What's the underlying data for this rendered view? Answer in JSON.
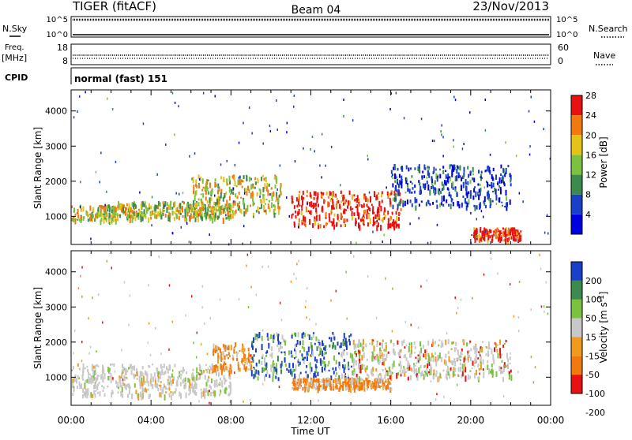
{
  "header": {
    "left": "TIGER (fitACF)",
    "center": "Beam 04",
    "right": "23/Nov/2013"
  },
  "strips": {
    "nsky_label": "N.Sky",
    "nsky_ticks": [
      "10^5",
      "10^0"
    ],
    "nsearch_ticks": [
      "10^5",
      "10^0"
    ],
    "nsearch_label": "N.Search",
    "freq_label": "Freq.",
    "freq_unit": "[MHz]",
    "freq_ticks": [
      "18",
      "8"
    ],
    "nave_ticks": [
      "60",
      "0"
    ],
    "nave_label": "Nave",
    "cpid_label": "CPID",
    "cpid_text": "normal (fast) 151"
  },
  "colors": {
    "power": [
      "#0000e0",
      "#1a3fc8",
      "#3b8a4e",
      "#7cc241",
      "#e3c21a",
      "#f07a10",
      "#e81010"
    ],
    "velocity": [
      "#e81010",
      "#f07a10",
      "#f09a20",
      "#c8c8c8",
      "#7cc241",
      "#3b8a4e",
      "#1a3fc8"
    ]
  },
  "chart_data": [
    {
      "type": "heatmap",
      "title": "",
      "xlabel": "Time UT",
      "ylabel": "Slant Range [km]",
      "xlim": [
        "00:00",
        "24:00"
      ],
      "ylim": [
        200,
        4600
      ],
      "x_ticks": [
        "00:00",
        "04:00",
        "08:00",
        "12:00",
        "16:00",
        "20:00",
        "00:00"
      ],
      "y_ticks": [
        1000,
        2000,
        3000,
        4000
      ],
      "colorbar": {
        "label": "Power [dB]",
        "ticks": [
          4,
          8,
          12,
          16,
          20,
          24,
          28
        ],
        "range": [
          0,
          30
        ]
      },
      "regions": [
        {
          "t": [
            0,
            2.3
          ],
          "r": [
            900,
            1350
          ],
          "level": "mid"
        },
        {
          "t": [
            2.3,
            8
          ],
          "r": [
            950,
            1450
          ],
          "level": "mid"
        },
        {
          "t": [
            6,
            10.5
          ],
          "r": [
            1100,
            2200
          ],
          "level": "mid"
        },
        {
          "t": [
            11,
            16.5
          ],
          "r": [
            750,
            1750
          ],
          "level": "high"
        },
        {
          "t": [
            16,
            22
          ],
          "r": [
            1300,
            2500
          ],
          "level": "low"
        },
        {
          "t": [
            20,
            22.5
          ],
          "r": [
            350,
            700
          ],
          "level": "high"
        }
      ]
    },
    {
      "type": "heatmap",
      "title": "",
      "xlabel": "Time UT",
      "ylabel": "Slant Range [km]",
      "xlim": [
        "00:00",
        "24:00"
      ],
      "ylim": [
        200,
        4600
      ],
      "x_ticks": [
        "00:00",
        "04:00",
        "08:00",
        "12:00",
        "16:00",
        "20:00",
        "00:00"
      ],
      "y_ticks": [
        1000,
        2000,
        3000,
        4000
      ],
      "colorbar": {
        "label": "Velocity [m s^-1]",
        "ticks": [
          200,
          100,
          50,
          15,
          -15,
          -50,
          -100,
          -200
        ],
        "range": [
          -250,
          250
        ]
      },
      "regions": [
        {
          "t": [
            0,
            8
          ],
          "r": [
            500,
            1400
          ],
          "level": "ground"
        },
        {
          "t": [
            7,
            9
          ],
          "r": [
            1200,
            2000
          ],
          "level": "negative"
        },
        {
          "t": [
            9,
            14
          ],
          "r": [
            1000,
            2300
          ],
          "level": "positive"
        },
        {
          "t": [
            11,
            16
          ],
          "r": [
            700,
            1000
          ],
          "level": "negative"
        },
        {
          "t": [
            14,
            22
          ],
          "r": [
            1000,
            2100
          ],
          "level": "mixed"
        }
      ]
    }
  ]
}
